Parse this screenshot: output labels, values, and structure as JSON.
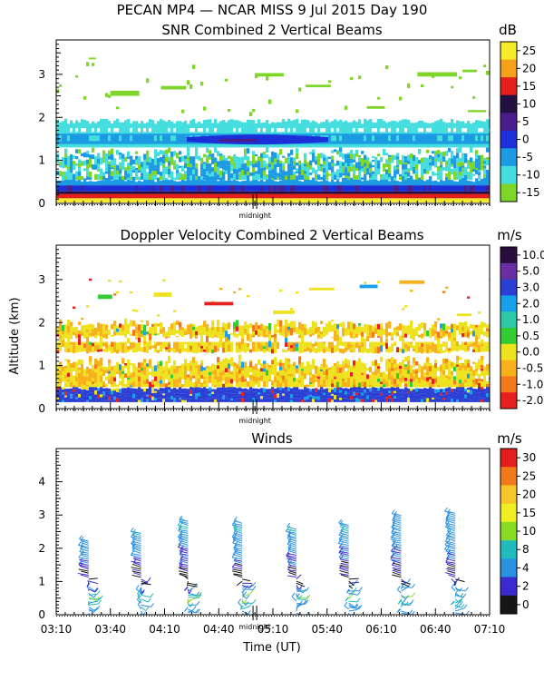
{
  "figure": {
    "title": "PECAN MP4 — NCAR MISS    9 Jul 2015 Day 190",
    "ylabel": "Altitude (km)",
    "xlabel": "Time (UT)",
    "midnight_label": "midnight",
    "time_ticks": [
      "03:10",
      "03:40",
      "04:10",
      "04:40",
      "05:10",
      "05:40",
      "06:10",
      "06:40",
      "07:10"
    ],
    "time_range_min": [
      190,
      430
    ],
    "midnight_at_min": 300
  },
  "chart_data": [
    {
      "name": "snr",
      "type": "heatmap",
      "title": "SNR Combined 2 Vertical Beams",
      "unit": "dB",
      "ylim": [
        0,
        3.8
      ],
      "yticks": [
        0,
        1,
        2,
        3
      ],
      "colorbar": {
        "labels": [
          "25",
          "20",
          "15",
          "10",
          "5",
          "0",
          "-5",
          "-10",
          "-15"
        ],
        "colors": [
          "#f6ea2b",
          "#f6a11b",
          "#e4201a",
          "#231040",
          "#4a1d8a",
          "#1c2fd8",
          "#1c9be4",
          "#45dddd",
          "#7ed62a"
        ]
      },
      "layers": [
        {
          "alt_km": [
            0.05,
            0.15
          ],
          "value_db": 25
        },
        {
          "alt_km": [
            0.15,
            0.3
          ],
          "value_db": 10
        },
        {
          "alt_km": [
            0.3,
            0.45
          ],
          "value_db": 0
        },
        {
          "alt_km": [
            0.45,
            1.2
          ],
          "value_db": -7
        },
        {
          "alt_km": [
            1.3,
            1.9
          ],
          "value_db": -10
        },
        {
          "alt_km": [
            1.4,
            1.55
          ],
          "value_db": 0
        }
      ]
    },
    {
      "name": "doppler",
      "type": "heatmap",
      "title": "Doppler Velocity Combined 2 Vertical Beams",
      "unit": "m/s",
      "ylim": [
        0,
        3.8
      ],
      "yticks": [
        0,
        1,
        2,
        3
      ],
      "colorbar": {
        "labels": [
          "10.0",
          "5.0",
          "3.0",
          "2.0",
          "1.0",
          "0.5",
          "0.0",
          "-0.5",
          "-1.0",
          "-2.0"
        ],
        "colors": [
          "#2a0d3e",
          "#6a2fa0",
          "#2c3fd4",
          "#18a0e8",
          "#2ec8a8",
          "#33cc33",
          "#eee21e",
          "#f7b11a",
          "#f27a1a",
          "#e62020"
        ]
      },
      "layers": [
        {
          "alt_km": [
            0.15,
            0.45
          ],
          "value_ms": 3.0
        },
        {
          "alt_km": [
            0.45,
            1.1
          ],
          "value_ms": -0.5
        },
        {
          "alt_km": [
            1.3,
            2.0
          ],
          "value_ms": 0.0
        }
      ]
    },
    {
      "name": "winds",
      "type": "wind_barbs",
      "title": "Winds",
      "unit": "m/s",
      "ylim": [
        0,
        5
      ],
      "yticks": [
        0,
        1,
        2,
        3,
        4
      ],
      "colorbar": {
        "labels": [
          "30",
          "25",
          "20",
          "15",
          "10",
          "8",
          "4",
          "2",
          "0"
        ],
        "colors": [
          "#e21e1e",
          "#f07a1a",
          "#f6c52a",
          "#eeee22",
          "#88dd22",
          "#22bbbb",
          "#2a90e0",
          "#3a2ad0",
          "#161616"
        ]
      },
      "profile_times_min": [
        208,
        237,
        263,
        293,
        323,
        352,
        381,
        411
      ],
      "profile_top_km": [
        2.25,
        2.5,
        2.85,
        2.8,
        2.6,
        2.7,
        3.05,
        3.1
      ],
      "speed_profile_ms": [
        {
          "alt_km": 0.1,
          "speed": 6
        },
        {
          "alt_km": 0.5,
          "speed": 10
        },
        {
          "alt_km": 1.0,
          "speed": 1
        },
        {
          "alt_km": 1.3,
          "speed": 2
        },
        {
          "alt_km": 1.7,
          "speed": 4
        },
        {
          "alt_km": 2.2,
          "speed": 6
        },
        {
          "alt_km": 2.6,
          "speed": 8
        },
        {
          "alt_km": 3.0,
          "speed": 5
        }
      ]
    }
  ]
}
